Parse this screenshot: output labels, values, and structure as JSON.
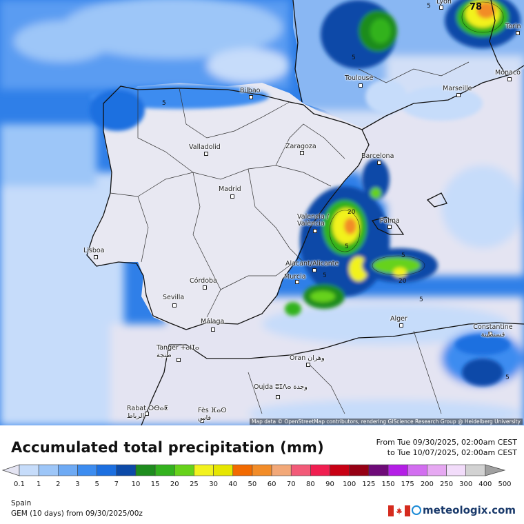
{
  "map": {
    "attribution": "Map data © OpenStreetMap contributors, rendering GIScience Research Group @ Heidelberg University",
    "cities": [
      {
        "name": "Lyon"
      },
      {
        "name": "Torin"
      },
      {
        "name": "Monaco"
      },
      {
        "name": "Toulouse"
      },
      {
        "name": "Marseille"
      },
      {
        "name": "Bilbao"
      },
      {
        "name": "Valladolid"
      },
      {
        "name": "Zaragoza"
      },
      {
        "name": "Barcelona"
      },
      {
        "name": "Madrid"
      },
      {
        "name": "Valencia / València"
      },
      {
        "name": "Palma"
      },
      {
        "name": "Lisboa"
      },
      {
        "name": "Alacant/Alicante"
      },
      {
        "name": "Murcia"
      },
      {
        "name": "Córdoba"
      },
      {
        "name": "Sevilla"
      },
      {
        "name": "Málaga"
      },
      {
        "name": "Alger"
      },
      {
        "name": "Constantine ﻗﺴﻨﻄﻴﻨﺔ"
      },
      {
        "name": "Tanger ⵜⴰⵏⵊⴰ طنجة"
      },
      {
        "name": "Oran وهران"
      },
      {
        "name": "Oujda ⵓⵊⴷⴰ وجدة"
      },
      {
        "name": "Rabat ⵔⴱⴰⵟ الرباط"
      },
      {
        "name": "Fès ⴼⴰⵙ فاس"
      }
    ],
    "contour_labels": [
      "78",
      "5",
      "5",
      "5",
      "20",
      "5",
      "20",
      "5",
      "5",
      "5",
      "5"
    ]
  },
  "title": "Accumulated total precipitation (mm)",
  "period": {
    "from": "From Tue 09/30/2025, 02:00am CEST",
    "to": "to Tue 10/07/2025, 02:00am CEST"
  },
  "legend": {
    "labels": [
      "0.1",
      "1",
      "2",
      "3",
      "5",
      "7",
      "10",
      "15",
      "20",
      "25",
      "30",
      "40",
      "50",
      "60",
      "70",
      "80",
      "90",
      "100",
      "125",
      "150",
      "175",
      "200",
      "250",
      "300",
      "400",
      "500"
    ],
    "colors": [
      "#e4e4f2",
      "#c6dcfa",
      "#9dc6f8",
      "#6eaaf4",
      "#3c8cf0",
      "#1c6fe0",
      "#0c4aa8",
      "#1e8c1e",
      "#33b21e",
      "#66d21a",
      "#f2f21e",
      "#e6e600",
      "#f26a00",
      "#f28c28",
      "#f2a878",
      "#f25a78",
      "#f01e50",
      "#c80014",
      "#960014",
      "#6e0a78",
      "#b41ee6",
      "#d26ef0",
      "#e6a8f2",
      "#f2dcfa",
      "#d2d2d2",
      "#a0a0a0"
    ]
  },
  "region": "Spain",
  "model": "GEM (10 days) from 09/30/2025/00z",
  "brand": "meteologix.com"
}
